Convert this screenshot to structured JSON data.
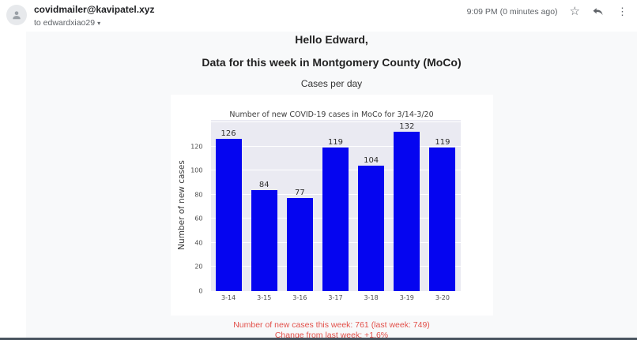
{
  "header": {
    "sender": "covidmailer@kavipatel.xyz",
    "to_line": "to edwardxiao29",
    "timestamp": "9:09 PM (0 minutes ago)"
  },
  "icons": {
    "star": "☆",
    "kebab": "⋮",
    "caret": "▾"
  },
  "body": {
    "greeting": "Hello Edward,",
    "heading": "Data for this week in Montgomery County (MoCo)",
    "subheading": "Cases per day",
    "summary_line1": "Number of new cases this week: 761 (last week: 749)",
    "summary_line2": "Change from last week: +1.6%"
  },
  "chart_data": {
    "type": "bar",
    "title": "Number of new COVID-19 cases in MoCo for 3/14-3/20",
    "xlabel": "",
    "ylabel": "Number of new cases",
    "categories": [
      "3-14",
      "3-15",
      "3-16",
      "3-17",
      "3-18",
      "3-19",
      "3-20"
    ],
    "values": [
      126,
      84,
      77,
      119,
      104,
      132,
      119
    ],
    "yticks": [
      0,
      20,
      40,
      60,
      80,
      100,
      120
    ],
    "gridlines": [
      20,
      40,
      60,
      80,
      100,
      120,
      140
    ],
    "ylim": [
      0,
      142
    ],
    "grid": true,
    "legend": false,
    "bar_color": "#0505f0",
    "plot_background": "#eaeaf2",
    "summary_color": "#e2504a"
  }
}
